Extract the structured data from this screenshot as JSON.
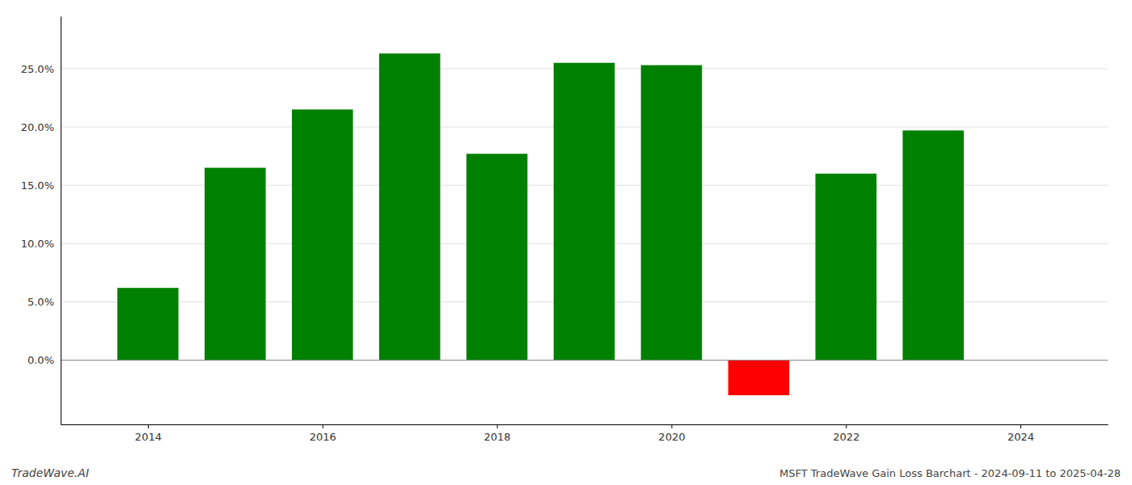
{
  "chart_data": {
    "type": "bar",
    "title": "MSFT TradeWave Gain Loss Barchart - 2024-09-11 to 2025-04-28",
    "annotations": [
      "TradeWave.AI"
    ],
    "x": [
      2014,
      2015,
      2016,
      2017,
      2018,
      2019,
      2020,
      2021,
      2022,
      2023
    ],
    "values": [
      0.062,
      0.165,
      0.215,
      0.263,
      0.177,
      0.255,
      0.253,
      -0.03,
      0.16,
      0.197
    ],
    "colors": [
      "#008000",
      "#008000",
      "#008000",
      "#008000",
      "#008000",
      "#008000",
      "#008000",
      "#ff0000",
      "#008000",
      "#008000"
    ],
    "xlim": [
      2013.0,
      2025.0
    ],
    "xticks": [
      2014,
      2016,
      2018,
      2020,
      2022,
      2024
    ],
    "ylim": [
      -0.055,
      0.295
    ],
    "yticks": [
      {
        "value": 0.0,
        "label": "0.0%"
      },
      {
        "value": 0.05,
        "label": "5.0%"
      },
      {
        "value": 0.1,
        "label": "10.0%"
      },
      {
        "value": 0.15,
        "label": "15.0%"
      },
      {
        "value": 0.2,
        "label": "20.0%"
      },
      {
        "value": 0.25,
        "label": "25.0%"
      }
    ],
    "grid": true
  }
}
